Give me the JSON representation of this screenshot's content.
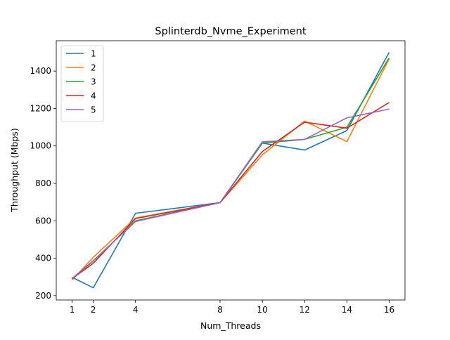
{
  "chart_data": {
    "type": "line",
    "title": "Splinterdb_Nvme_Experiment",
    "xlabel": "Num_Threads",
    "ylabel": "Throughput (Mbps)",
    "x": [
      1,
      2,
      4,
      8,
      10,
      12,
      14,
      16
    ],
    "xticks": [
      1,
      2,
      4,
      8,
      10,
      12,
      14,
      16
    ],
    "yticks": [
      200,
      400,
      600,
      800,
      1000,
      1200,
      1400
    ],
    "xlim": [
      0.25,
      16.75
    ],
    "ylim": [
      177,
      1562
    ],
    "grid": false,
    "legend_position": "top-left",
    "series": [
      {
        "name": "1",
        "color": "#1f77b4",
        "values": [
          298,
          242,
          640,
          697,
          1015,
          978,
          1082,
          1500
        ]
      },
      {
        "name": "2",
        "color": "#ff7f0e",
        "values": [
          283,
          405,
          615,
          697,
          952,
          1133,
          1023,
          1465
        ]
      },
      {
        "name": "3",
        "color": "#2ca02c",
        "values": [
          290,
          385,
          600,
          697,
          1015,
          1035,
          1100,
          1470
        ]
      },
      {
        "name": "4",
        "color": "#d62728",
        "values": [
          291,
          373,
          612,
          697,
          970,
          1127,
          1095,
          1232
        ]
      },
      {
        "name": "5",
        "color": "#9467bd",
        "values": [
          292,
          387,
          596,
          697,
          1022,
          1035,
          1150,
          1197
        ]
      }
    ]
  }
}
